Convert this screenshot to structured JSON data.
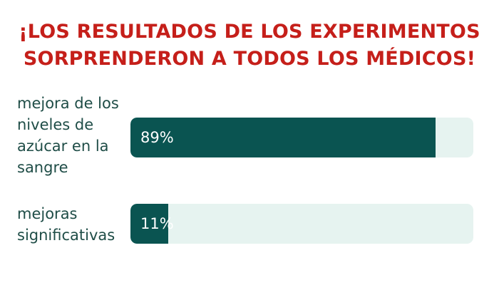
{
  "chart_data": {
    "type": "bar",
    "orientation": "horizontal",
    "title": "¡LOS RESULTADOS DE LOS EXPERIMENTOS SORPRENDERON A TODOS LOS MÉDICOS!",
    "categories": [
      "mejora de los niveles de azúcar en la sangre",
      "mejoras significativas"
    ],
    "values": [
      89,
      11
    ],
    "value_labels": [
      "89%",
      "11%"
    ],
    "xlim": [
      0,
      100
    ],
    "unit": "%",
    "grid": false,
    "colors": {
      "title": "#c51f1a",
      "bar_fill": "#0a5451",
      "bar_track": "#e6f3f0",
      "label_text": "#1f4d47",
      "value_text": "#ffffff"
    }
  }
}
